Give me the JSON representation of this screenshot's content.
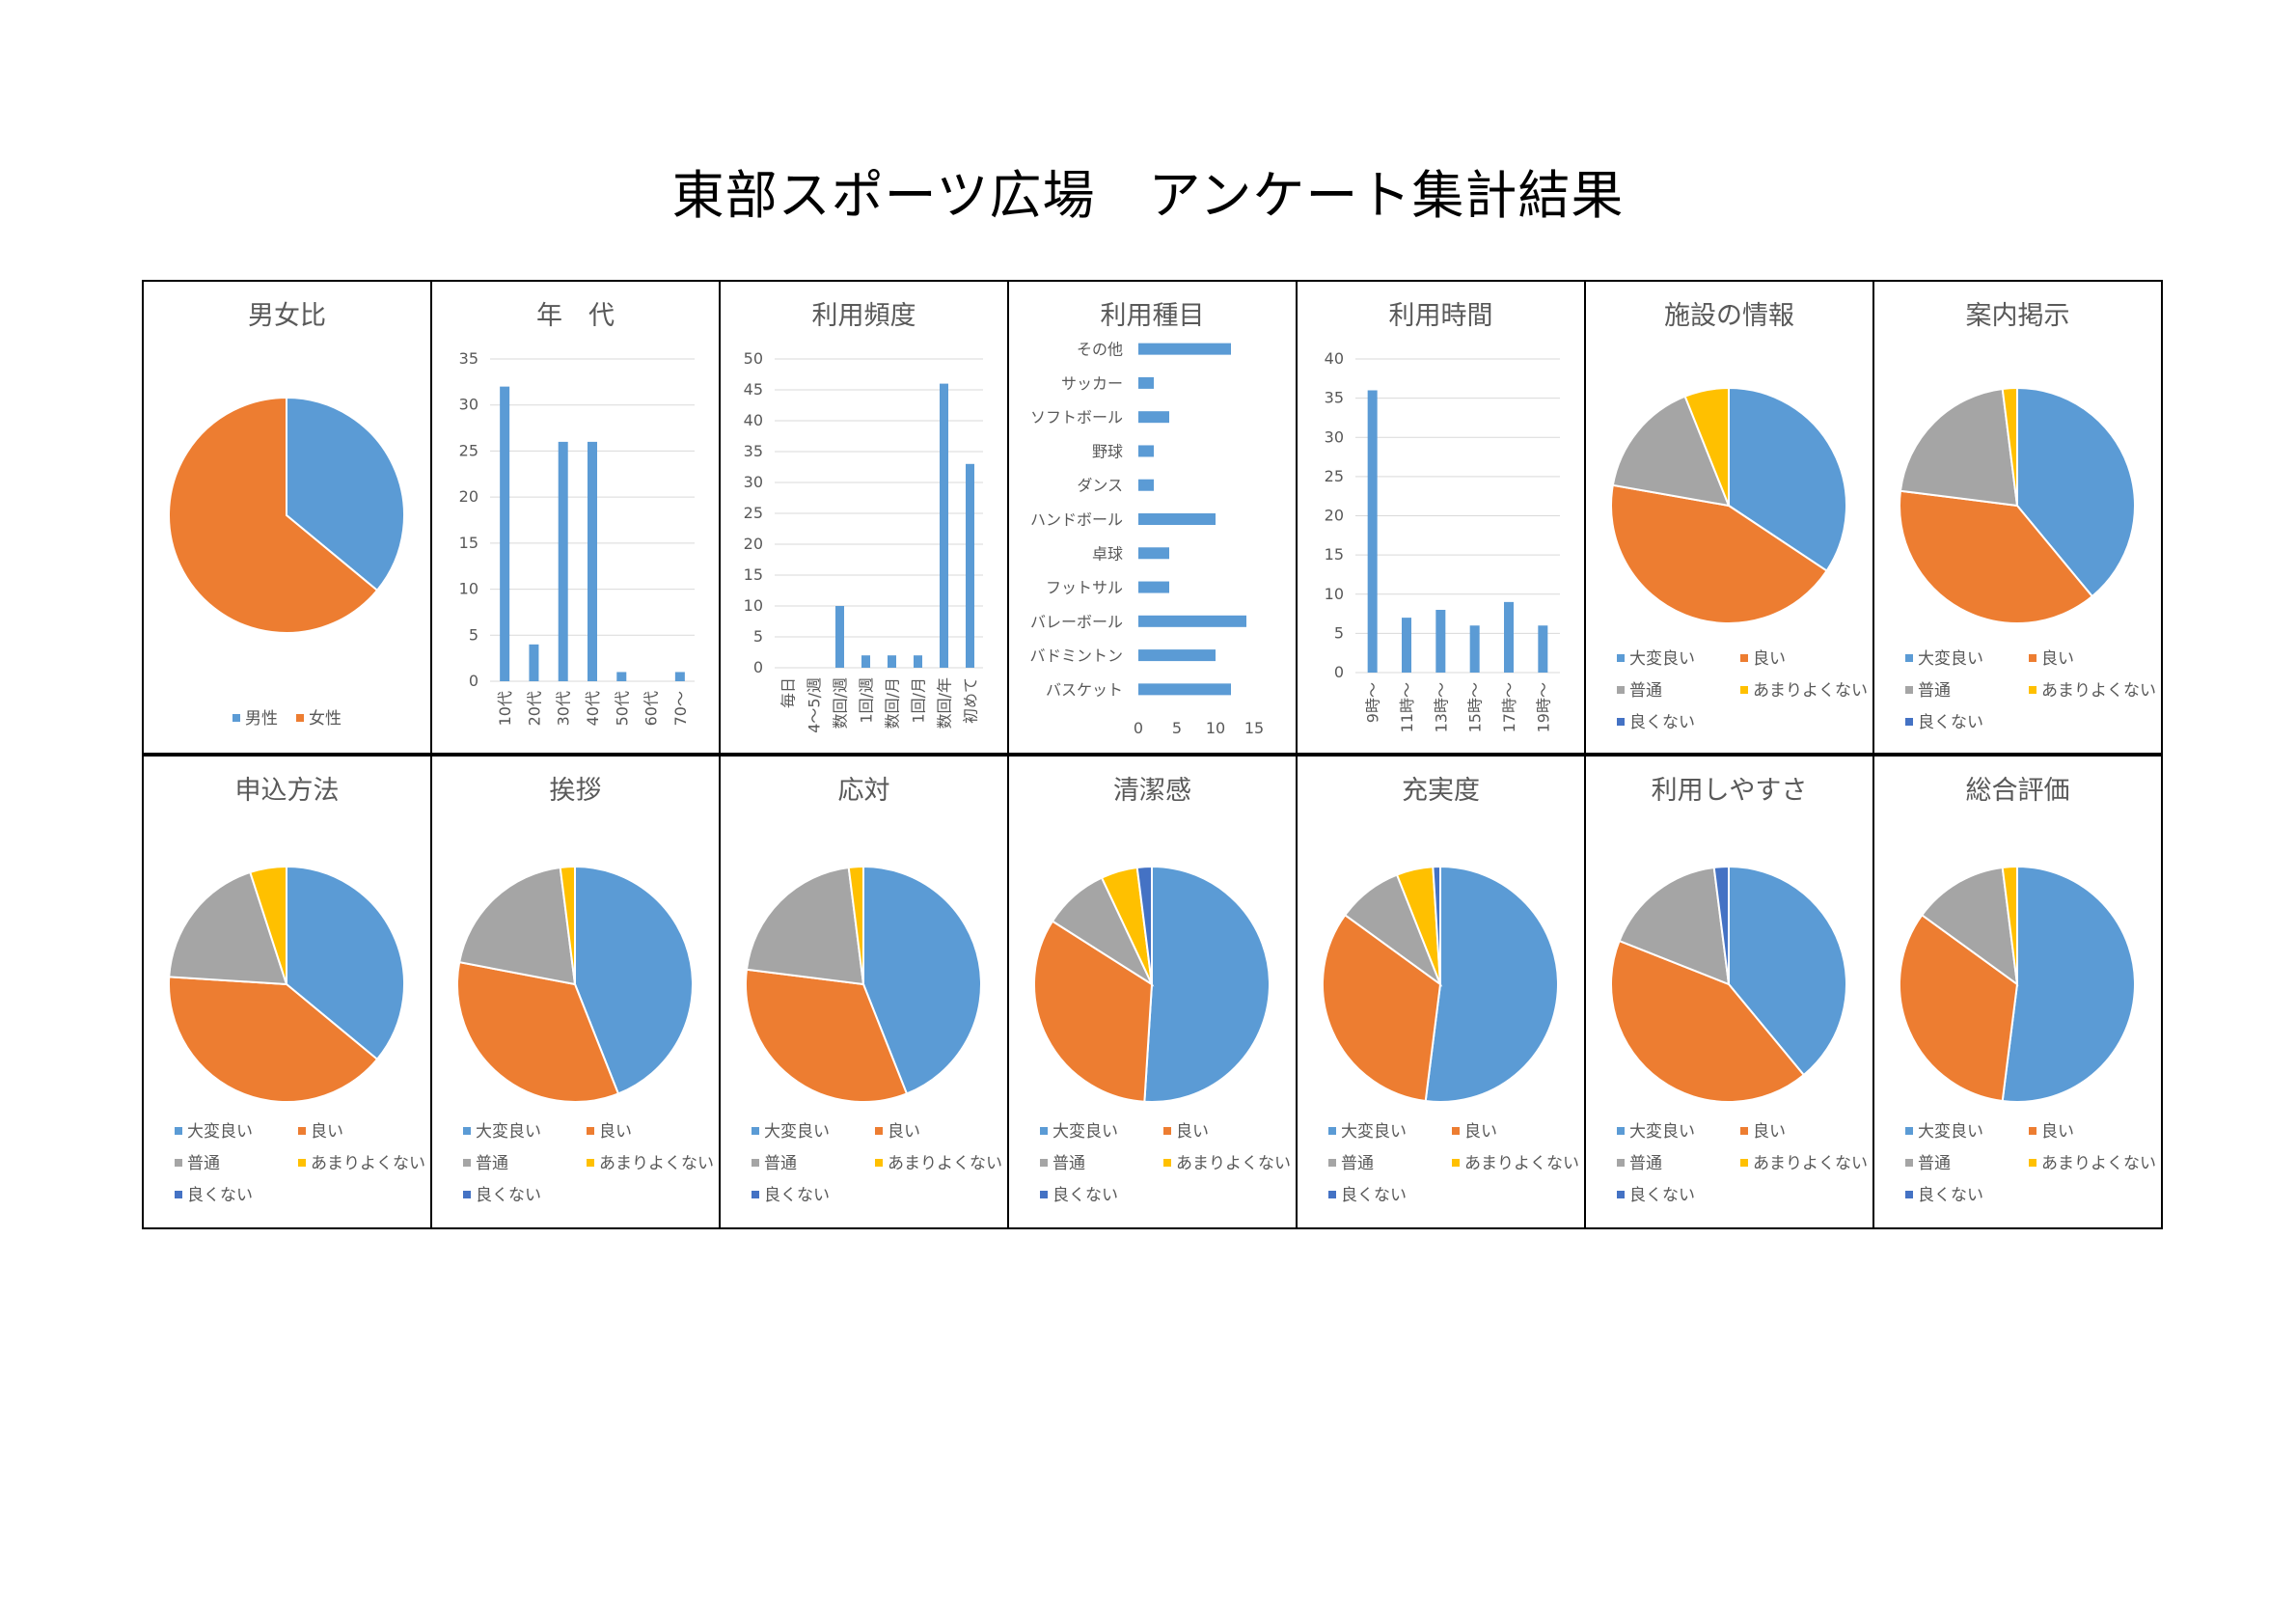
{
  "title": "東部スポーツ広場　アンケート集計結果",
  "colors": {
    "blue": "#5B9BD5",
    "orange": "#ED7D31",
    "gray": "#A5A5A5",
    "yellow": "#FFC000",
    "navy": "#4472C4"
  },
  "rating_categories": [
    "大変良い",
    "良い",
    "普通",
    "あまりよくない",
    "良くない"
  ],
  "chart_data": [
    {
      "type": "pie",
      "title": "男女比",
      "categories": [
        "男性",
        "女性"
      ],
      "values": [
        36,
        64
      ],
      "legend": "bottom"
    },
    {
      "type": "bar",
      "title": "年　代",
      "categories": [
        "10代",
        "20代",
        "30代",
        "40代",
        "50代",
        "60代",
        "70～"
      ],
      "values": [
        32,
        4,
        26,
        26,
        1,
        0,
        1
      ],
      "ylim": [
        0,
        35
      ],
      "yticks": [
        0,
        5,
        10,
        15,
        20,
        25,
        30,
        35
      ],
      "grid": true
    },
    {
      "type": "bar",
      "title": "利用頻度",
      "categories": [
        "毎日",
        "4～5/週",
        "数回/週",
        "1回/週",
        "数回/月",
        "1回/月",
        "数回/年",
        "初めて"
      ],
      "values": [
        0,
        0,
        10,
        2,
        2,
        2,
        46,
        33
      ],
      "ylim": [
        0,
        50
      ],
      "yticks": [
        0,
        5,
        10,
        15,
        20,
        25,
        30,
        35,
        40,
        45,
        50
      ],
      "grid": true
    },
    {
      "type": "bar",
      "orientation": "horizontal",
      "title": "利用種目",
      "categories": [
        "その他",
        "サッカー",
        "ソフトボール",
        "野球",
        "ダンス",
        "ハンドボール",
        "卓球",
        "フットサル",
        "バレーボール",
        "バドミントン",
        "バスケット"
      ],
      "values": [
        12,
        2,
        4,
        2,
        2,
        10,
        4,
        4,
        14,
        10,
        12
      ],
      "xlim": [
        0,
        15
      ],
      "xticks": [
        0,
        5,
        10,
        15
      ]
    },
    {
      "type": "bar",
      "title": "利用時間",
      "categories": [
        "9時～",
        "11時～",
        "13時～",
        "15時～",
        "17時～",
        "19時～"
      ],
      "values": [
        36,
        7,
        8,
        6,
        9,
        6
      ],
      "ylim": [
        0,
        40
      ],
      "yticks": [
        0,
        5,
        10,
        15,
        20,
        25,
        30,
        35,
        40
      ],
      "grid": true
    },
    {
      "type": "pie",
      "title": "施設の情報",
      "values": [
        34,
        43,
        16,
        6,
        0
      ],
      "legend": "bottom"
    },
    {
      "type": "pie",
      "title": "案内掲示",
      "values": [
        39,
        38,
        21,
        2,
        0
      ],
      "legend": "bottom"
    },
    {
      "type": "pie",
      "title": "申込方法",
      "values": [
        36,
        40,
        19,
        5,
        0
      ],
      "legend": "bottom"
    },
    {
      "type": "pie",
      "title": "挨拶",
      "values": [
        44,
        34,
        20,
        2,
        0
      ],
      "legend": "bottom"
    },
    {
      "type": "pie",
      "title": "応対",
      "values": [
        44,
        33,
        21,
        2,
        0
      ],
      "legend": "bottom"
    },
    {
      "type": "pie",
      "title": "清潔感",
      "values": [
        51,
        33,
        9,
        5,
        2
      ],
      "legend": "bottom"
    },
    {
      "type": "pie",
      "title": "充実度",
      "values": [
        52,
        33,
        9,
        5,
        1
      ],
      "legend": "bottom"
    },
    {
      "type": "pie",
      "title": "利用しやすさ",
      "values": [
        39,
        42,
        17,
        0,
        2
      ],
      "legend": "bottom"
    },
    {
      "type": "pie",
      "title": "総合評価",
      "values": [
        52,
        33,
        13,
        2,
        0
      ],
      "legend": "bottom"
    }
  ]
}
